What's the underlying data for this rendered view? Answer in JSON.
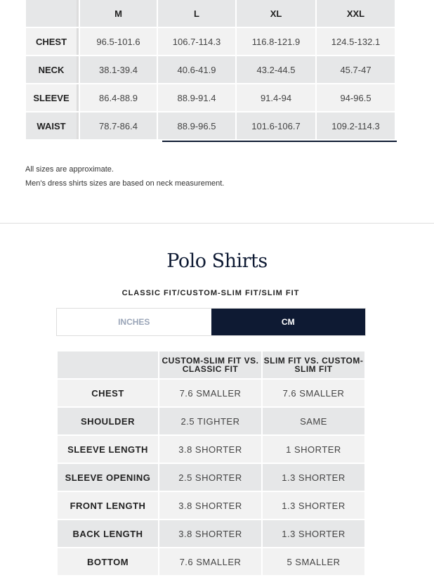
{
  "shirt_table": {
    "headers": [
      "",
      "M",
      "L",
      "XL",
      "XXL"
    ],
    "rows": [
      {
        "label": "CHEST",
        "values": [
          "96.5-101.6",
          "106.7-114.3",
          "116.8-121.9",
          "124.5-132.1"
        ]
      },
      {
        "label": "NECK",
        "values": [
          "38.1-39.4",
          "40.6-41.9",
          "43.2-44.5",
          "45.7-47"
        ]
      },
      {
        "label": "SLEEVE",
        "values": [
          "86.4-88.9",
          "88.9-91.4",
          "91.4-94",
          "94-96.5"
        ]
      },
      {
        "label": "WAIST",
        "values": [
          "78.7-86.4",
          "88.9-96.5",
          "101.6-106.7",
          "109.2-114.3"
        ]
      }
    ]
  },
  "notes": [
    "All sizes are approximate.",
    "Men's dress shirts sizes are based on neck measurement."
  ],
  "polo": {
    "title": "Polo Shirts",
    "fit_label": "CLASSIC FIT/CUSTOM-SLIM FIT/SLIM FIT",
    "toggle": {
      "inches": "INCHES",
      "cm": "CM",
      "selected": "CM"
    },
    "headers": [
      "",
      "CUSTOM-SLIM FIT VS. CLASSIC FIT",
      "SLIM FIT VS. CUSTOM-SLIM FIT"
    ],
    "rows": [
      {
        "label": "CHEST",
        "values": [
          "7.6 SMALLER",
          "7.6 SMALLER"
        ]
      },
      {
        "label": "SHOULDER",
        "values": [
          "2.5 TIGHTER",
          "SAME"
        ]
      },
      {
        "label": "SLEEVE LENGTH",
        "values": [
          "3.8 SHORTER",
          "1 SHORTER"
        ]
      },
      {
        "label": "SLEEVE OPENING",
        "values": [
          "2.5 SHORTER",
          "1.3 SHORTER"
        ]
      },
      {
        "label": "FRONT LENGTH",
        "values": [
          "3.8 SHORTER",
          "1.3 SHORTER"
        ]
      },
      {
        "label": "BACK LENGTH",
        "values": [
          "3.8 SHORTER",
          "1.3 SHORTER"
        ]
      },
      {
        "label": "BOTTOM",
        "values": [
          "7.6 SMALLER",
          "5 SMALLER"
        ]
      }
    ]
  },
  "colors": {
    "navy": "#0e1a33",
    "cell_dark": "#e6e7e8",
    "cell_light": "#f2f2f2"
  }
}
